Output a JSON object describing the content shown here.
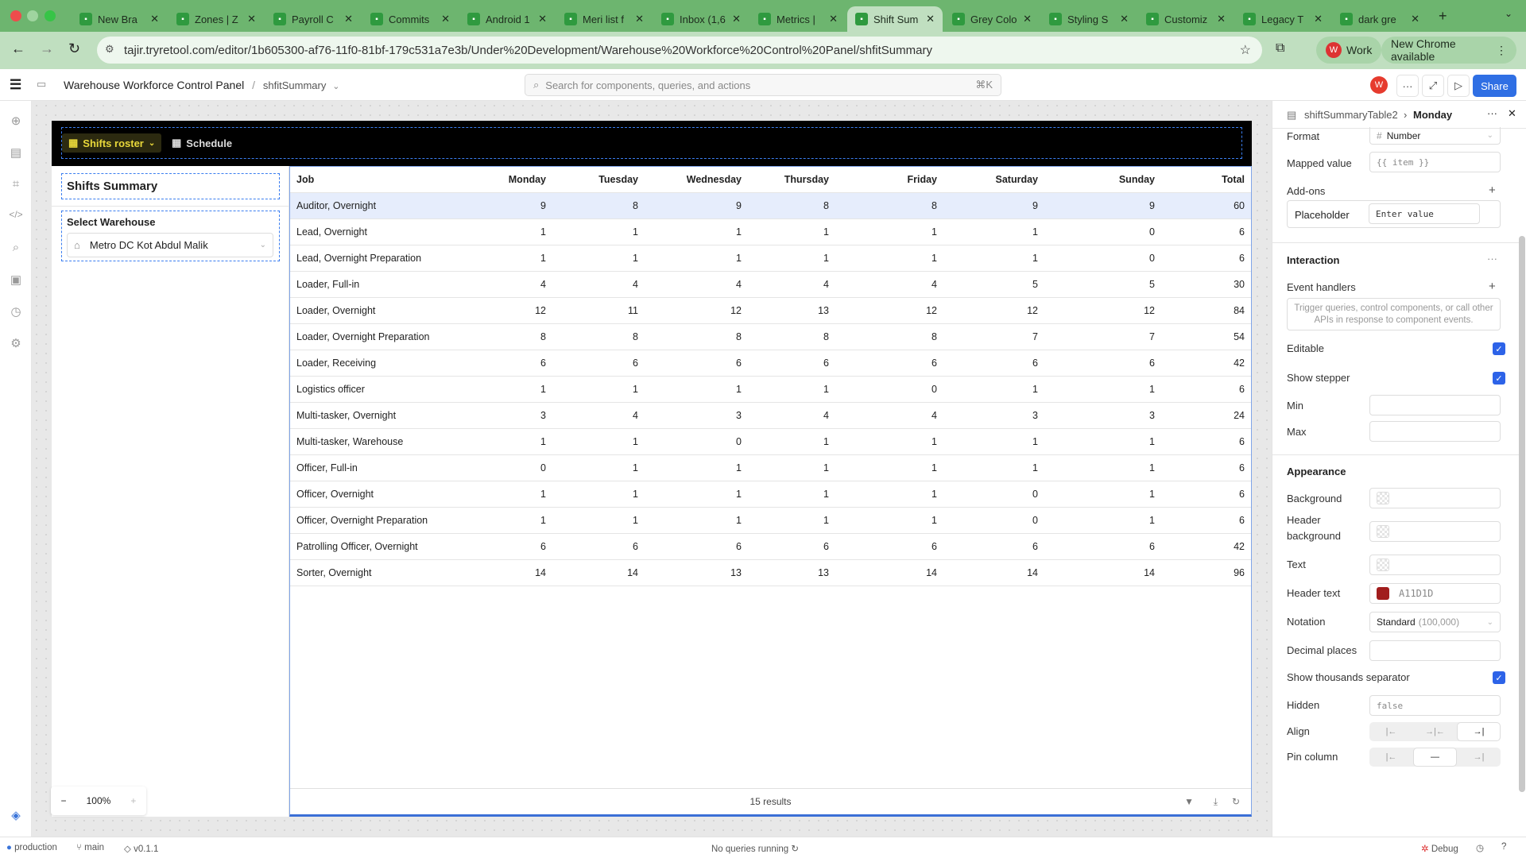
{
  "browser": {
    "tabs": [
      {
        "label": "New Bra",
        "icon": "gmail-icon"
      },
      {
        "label": "Zones | Z",
        "icon": "retool-app-icon"
      },
      {
        "label": "Payroll C",
        "icon": "retool-app-icon"
      },
      {
        "label": "Commits",
        "icon": "github-icon"
      },
      {
        "label": "Android 1",
        "icon": "github-icon"
      },
      {
        "label": "Meri list f",
        "icon": "github-icon"
      },
      {
        "label": "Inbox (1,6",
        "icon": "gmail-icon"
      },
      {
        "label": "Metrics |",
        "icon": "retool-app-icon"
      },
      {
        "label": "Shift Sum",
        "icon": "retool-app-icon",
        "active": true
      },
      {
        "label": "Grey Colo",
        "icon": "paint-icon"
      },
      {
        "label": "Styling S",
        "icon": "retool-icon"
      },
      {
        "label": "Customiz",
        "icon": "retool-icon"
      },
      {
        "label": "Legacy T",
        "icon": "retool-icon"
      },
      {
        "label": "dark gre",
        "icon": "google-icon"
      }
    ],
    "url": "tajir.tryretool.com/editor/1b605300-af76-11f0-81bf-179c531a7e3b/Under%20Development/Warehouse%20Workforce%20Control%20Panel/shfitSummary",
    "profile": "Work",
    "profile_initial": "W",
    "update": "New Chrome available"
  },
  "editor": {
    "app_name": "Warehouse Workforce Control Panel",
    "page": "shfitSummary",
    "search_placeholder": "Search for components, queries, and actions",
    "shortcut": "⌘K",
    "avatar": "W",
    "share": "Share",
    "zoom": "100%"
  },
  "app": {
    "nav": {
      "active": "Shifts roster",
      "other": "Schedule"
    },
    "title": "Shifts Summary",
    "warehouse_label": "Select Warehouse",
    "warehouse_value": "Metro DC Kot Abdul Malik",
    "table": {
      "columns": [
        "Job",
        "Monday",
        "Tuesday",
        "Wednesday",
        "Thursday",
        "Friday",
        "Saturday",
        "Sunday",
        "Total"
      ],
      "rows": [
        [
          "Auditor, Overnight",
          "9",
          "8",
          "9",
          "8",
          "8",
          "9",
          "9",
          "60"
        ],
        [
          "Lead, Overnight",
          "1",
          "1",
          "1",
          "1",
          "1",
          "1",
          "0",
          "6"
        ],
        [
          "Lead, Overnight Preparation",
          "1",
          "1",
          "1",
          "1",
          "1",
          "1",
          "0",
          "6"
        ],
        [
          "Loader, Full-in",
          "4",
          "4",
          "4",
          "4",
          "4",
          "5",
          "5",
          "30"
        ],
        [
          "Loader, Overnight",
          "12",
          "11",
          "12",
          "13",
          "12",
          "12",
          "12",
          "84"
        ],
        [
          "Loader, Overnight Preparation",
          "8",
          "8",
          "8",
          "8",
          "8",
          "7",
          "7",
          "54"
        ],
        [
          "Loader, Receiving",
          "6",
          "6",
          "6",
          "6",
          "6",
          "6",
          "6",
          "42"
        ],
        [
          "Logistics officer",
          "1",
          "1",
          "1",
          "1",
          "0",
          "1",
          "1",
          "6"
        ],
        [
          "Multi-tasker, Overnight",
          "3",
          "4",
          "3",
          "4",
          "4",
          "3",
          "3",
          "24"
        ],
        [
          "Multi-tasker, Warehouse",
          "1",
          "1",
          "0",
          "1",
          "1",
          "1",
          "1",
          "6"
        ],
        [
          "Officer, Full-in",
          "0",
          "1",
          "1",
          "1",
          "1",
          "1",
          "1",
          "6"
        ],
        [
          "Officer, Overnight",
          "1",
          "1",
          "1",
          "1",
          "1",
          "0",
          "1",
          "6"
        ],
        [
          "Officer, Overnight Preparation",
          "1",
          "1",
          "1",
          "1",
          "1",
          "0",
          "1",
          "6"
        ],
        [
          "Patrolling Officer, Overnight",
          "6",
          "6",
          "6",
          "6",
          "6",
          "6",
          "6",
          "42"
        ],
        [
          "Sorter, Overnight",
          "14",
          "14",
          "13",
          "13",
          "14",
          "14",
          "14",
          "96"
        ]
      ],
      "footer": "15 results"
    }
  },
  "inspector": {
    "component": "shiftSummaryTable2",
    "column": "Monday",
    "format_label": "Format",
    "format_value": "Number",
    "mapped_label": "Mapped value",
    "mapped_value": "{{ item }}",
    "addons_label": "Add-ons",
    "placeholder_label": "Placeholder",
    "placeholder_value": "Enter value",
    "interaction": "Interaction",
    "event_handlers": "Event handlers",
    "event_hint": "Trigger queries, control components, or call other APIs in response to component events.",
    "editable": "Editable",
    "editable_checked": true,
    "stepper": "Show stepper",
    "stepper_checked": true,
    "min": "Min",
    "max": "Max",
    "appearance": "Appearance",
    "background": "Background",
    "header_background": "Header background",
    "text": "Text",
    "header_text": "Header text",
    "header_text_value": "A11D1D",
    "header_text_color": "#A11D1D",
    "notation": "Notation",
    "notation_value": "Standard",
    "notation_hint": "(100,000)",
    "decimal": "Decimal places",
    "thousands": "Show thousands separator",
    "thousands_checked": true,
    "hidden": "Hidden",
    "hidden_value": "false",
    "align": "Align",
    "align_selected": "right",
    "pin": "Pin column",
    "pin_selected": "none"
  },
  "status": {
    "env": "production",
    "branch": "main",
    "version": "v0.1.1",
    "queries": "No queries running",
    "debug": "Debug"
  }
}
